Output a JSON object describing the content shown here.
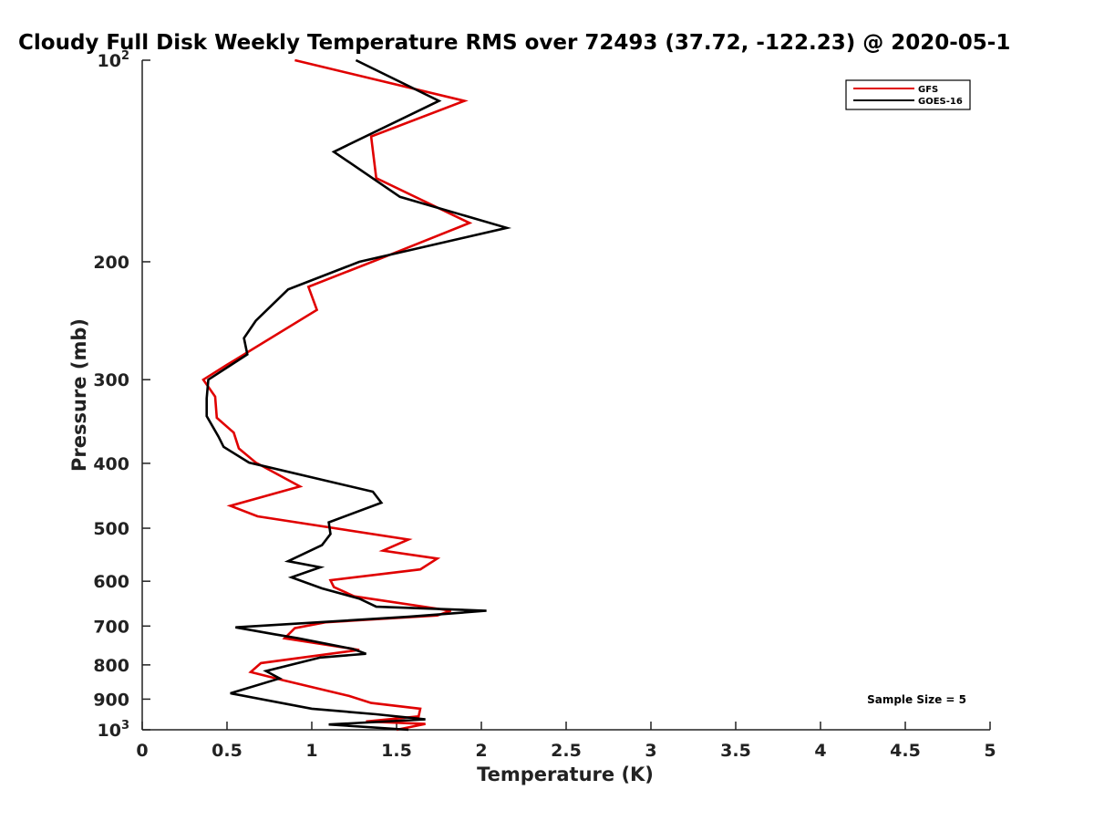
{
  "chart_data": {
    "type": "line",
    "title": "Cloudy Full Disk Weekly Temperature RMS over 72493 (37.72, -122.23) @ 2020-05-1",
    "xlabel": "Temperature (K)",
    "ylabel": "Pressure (mb)",
    "xlim": [
      0,
      5
    ],
    "ylim": [
      100,
      1000
    ],
    "y_scale": "log",
    "y_reversed": true,
    "x_ticks": [
      {
        "value": 0,
        "label": "0"
      },
      {
        "value": 0.5,
        "label": "0.5"
      },
      {
        "value": 1,
        "label": "1"
      },
      {
        "value": 1.5,
        "label": "1.5"
      },
      {
        "value": 2,
        "label": "2"
      },
      {
        "value": 2.5,
        "label": "2.5"
      },
      {
        "value": 3,
        "label": "3"
      },
      {
        "value": 3.5,
        "label": "3.5"
      },
      {
        "value": 4,
        "label": "4"
      },
      {
        "value": 4.5,
        "label": "4.5"
      },
      {
        "value": 5,
        "label": "5"
      }
    ],
    "y_ticks": [
      {
        "value": 100,
        "base": "10",
        "exp": "2"
      },
      {
        "value": 200,
        "base": "200",
        "exp": ""
      },
      {
        "value": 300,
        "base": "300",
        "exp": ""
      },
      {
        "value": 400,
        "base": "400",
        "exp": ""
      },
      {
        "value": 500,
        "base": "500",
        "exp": ""
      },
      {
        "value": 600,
        "base": "600",
        "exp": ""
      },
      {
        "value": 700,
        "base": "700",
        "exp": ""
      },
      {
        "value": 800,
        "base": "800",
        "exp": ""
      },
      {
        "value": 900,
        "base": "900",
        "exp": ""
      },
      {
        "value": 1000,
        "base": "10",
        "exp": "3"
      }
    ],
    "grid": false,
    "legend_position": "top-right",
    "annotation": "Sample Size = 5",
    "series": [
      {
        "name": "GFS",
        "color": "#e00000",
        "points": [
          [
            0.9,
            100
          ],
          [
            1.9,
            115
          ],
          [
            1.35,
            130
          ],
          [
            1.38,
            150
          ],
          [
            1.93,
            175
          ],
          [
            1.4,
            198
          ],
          [
            0.98,
            218
          ],
          [
            1.03,
            236
          ],
          [
            0.5,
            285
          ],
          [
            0.36,
            300
          ],
          [
            0.43,
            318
          ],
          [
            0.44,
            342
          ],
          [
            0.54,
            360
          ],
          [
            0.57,
            380
          ],
          [
            0.67,
            399
          ],
          [
            0.93,
            433
          ],
          [
            0.52,
            463
          ],
          [
            0.68,
            480
          ],
          [
            1.57,
            520
          ],
          [
            1.42,
            540
          ],
          [
            1.74,
            555
          ],
          [
            1.64,
            576
          ],
          [
            1.11,
            598
          ],
          [
            1.13,
            612
          ],
          [
            1.25,
            632
          ],
          [
            1.82,
            664
          ],
          [
            1.74,
            675
          ],
          [
            1.08,
            691
          ],
          [
            0.9,
            705
          ],
          [
            0.84,
            730
          ],
          [
            1.28,
            760
          ],
          [
            0.7,
            795
          ],
          [
            0.64,
            820
          ],
          [
            0.83,
            843
          ],
          [
            1.22,
            890
          ],
          [
            1.35,
            912
          ],
          [
            1.64,
            930
          ],
          [
            1.63,
            955
          ],
          [
            1.32,
            972
          ],
          [
            1.67,
            980
          ],
          [
            1.5,
            1000
          ]
        ]
      },
      {
        "name": "GOES-16",
        "color": "#000000",
        "points": [
          [
            1.26,
            100
          ],
          [
            1.75,
            115
          ],
          [
            1.13,
            137
          ],
          [
            1.52,
            160
          ],
          [
            2.15,
            178
          ],
          [
            1.28,
            200
          ],
          [
            0.86,
            220
          ],
          [
            0.67,
            245
          ],
          [
            0.6,
            260
          ],
          [
            0.62,
            275
          ],
          [
            0.39,
            300
          ],
          [
            0.38,
            320
          ],
          [
            0.38,
            340
          ],
          [
            0.45,
            365
          ],
          [
            0.48,
            378
          ],
          [
            0.63,
            399
          ],
          [
            1.36,
            441
          ],
          [
            1.41,
            458
          ],
          [
            1.1,
            490
          ],
          [
            1.11,
            510
          ],
          [
            1.06,
            530
          ],
          [
            0.86,
            560
          ],
          [
            1.05,
            572
          ],
          [
            0.88,
            592
          ],
          [
            1.06,
            615
          ],
          [
            1.28,
            637
          ],
          [
            1.38,
            655
          ],
          [
            2.03,
            664
          ],
          [
            1.57,
            678
          ],
          [
            0.55,
            703
          ],
          [
            0.78,
            720
          ],
          [
            0.92,
            730
          ],
          [
            1.24,
            757
          ],
          [
            1.32,
            770
          ],
          [
            1.05,
            780
          ],
          [
            0.73,
            817
          ],
          [
            0.81,
            838
          ],
          [
            0.52,
            882
          ],
          [
            1.0,
            930
          ],
          [
            1.38,
            948
          ],
          [
            1.67,
            965
          ],
          [
            1.1,
            982
          ],
          [
            1.57,
            1000
          ]
        ]
      }
    ]
  }
}
